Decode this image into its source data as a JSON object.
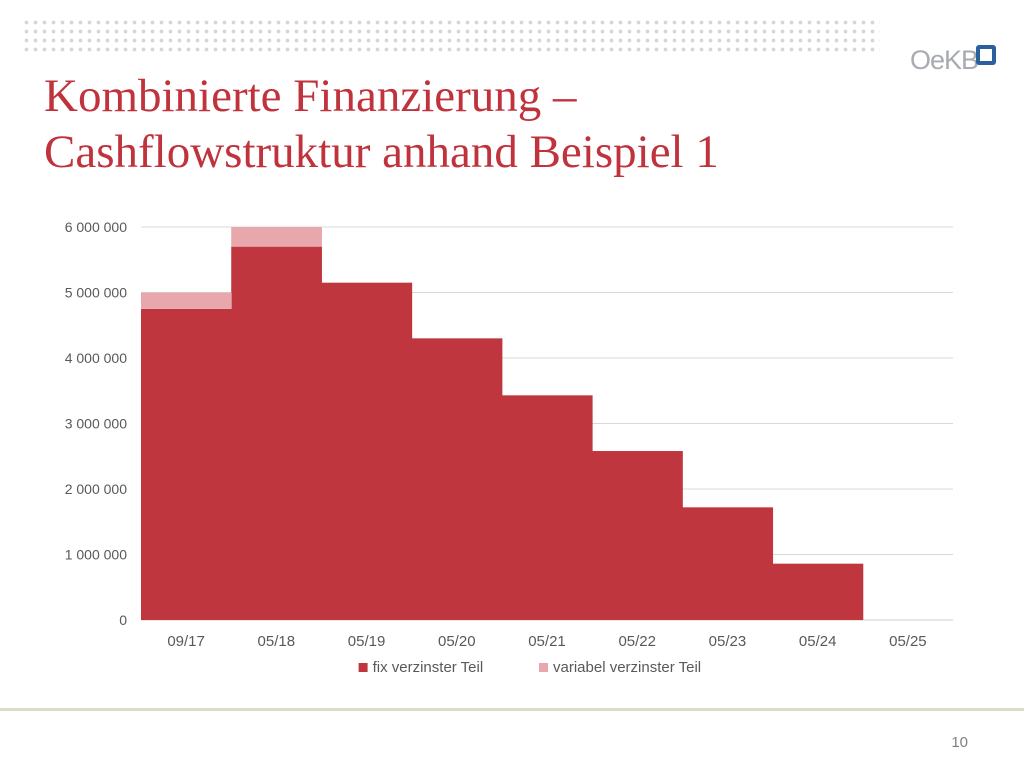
{
  "slide": {
    "title_line1": "Kombinierte Finanzierung –",
    "title_line2": "Cashflowstruktur anhand Beispiel 1",
    "page_number": "10"
  },
  "logo": {
    "text": "OeKB"
  },
  "colors": {
    "title": "#c0333d",
    "fix": "#c0363e",
    "variabel": "#e8a7ad",
    "logo_accent": "#2b5f9e"
  },
  "chart_data": {
    "type": "area",
    "step": true,
    "stacked": true,
    "categories": [
      "09/17",
      "05/18",
      "05/19",
      "05/20",
      "05/21",
      "05/22",
      "05/23",
      "05/24",
      "05/25"
    ],
    "series": [
      {
        "name": "fix verzinster Teil",
        "color": "#c0363e",
        "values": [
          4750000,
          5700000,
          5150000,
          4300000,
          3430000,
          2580000,
          1720000,
          860000,
          0
        ]
      },
      {
        "name": "variabel verzinster Teil",
        "color": "#e8a7ad",
        "values": [
          250000,
          300000,
          0,
          0,
          0,
          0,
          0,
          0,
          0
        ]
      }
    ],
    "ylim": [
      0,
      6000000
    ],
    "yticks": [
      0,
      1000000,
      2000000,
      3000000,
      4000000,
      5000000,
      6000000
    ],
    "ytick_labels": [
      "0",
      "1 000 000",
      "2 000 000",
      "3 000 000",
      "4 000 000",
      "5 000 000",
      "6 000 000"
    ],
    "grid": true,
    "legend": "bottom"
  }
}
